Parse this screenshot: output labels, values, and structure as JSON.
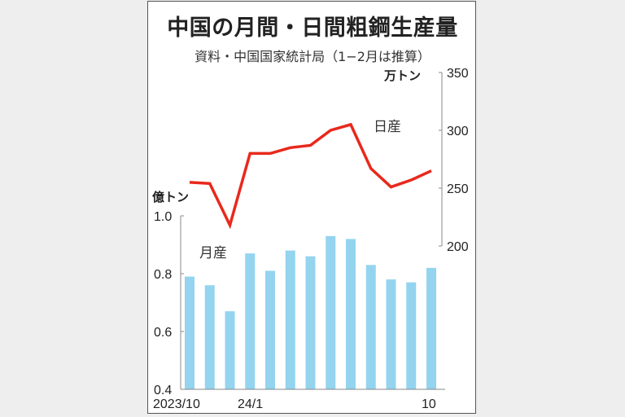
{
  "title": "中国の月間・日間粗鋼生産量",
  "subtitle": "資料・中国国家統計局（1−2月は推算）",
  "units": {
    "right": "万トン",
    "left": "億トン"
  },
  "series_labels": {
    "daily": "日産",
    "monthly": "月産"
  },
  "colors": {
    "bar": "#94d4ef",
    "line": "#e8291c",
    "frame": "#555555",
    "background": "#eeeeee"
  },
  "x_labels": {
    "start": "2023/10",
    "jan": "24/1",
    "end": "10"
  },
  "left_ticks": [
    "1.0",
    "0.8",
    "0.6",
    "0.4"
  ],
  "right_ticks": [
    "350",
    "300",
    "250",
    "200"
  ],
  "chart_data": {
    "type": "bar+line",
    "title": "中国の月間・日間粗鋼生産量",
    "subtitle": "資料・中国国家統計局（1−2月は推算）",
    "categories": [
      "2023/10",
      "2023/11",
      "2023/12",
      "2024/1",
      "2024/2",
      "2024/3",
      "2024/4",
      "2024/5",
      "2024/6",
      "2024/7",
      "2024/8",
      "2024/9",
      "2024/10"
    ],
    "tick_labels": [
      "2023/10",
      "24/1",
      "10"
    ],
    "series": [
      {
        "name": "月産",
        "type": "bar",
        "axis": "left",
        "unit": "億トン",
        "values": [
          0.79,
          0.76,
          0.67,
          0.87,
          0.81,
          0.88,
          0.86,
          0.93,
          0.92,
          0.83,
          0.78,
          0.77,
          0.82
        ]
      },
      {
        "name": "日産",
        "type": "line",
        "axis": "right",
        "unit": "万トン",
        "values": [
          255,
          254,
          218,
          280,
          280,
          285,
          287,
          300,
          305,
          267,
          251,
          257,
          265
        ]
      }
    ],
    "ylim_left": [
      0.4,
      1.0
    ],
    "ylim_right": [
      200,
      350
    ],
    "ylabel_left": "億トン",
    "ylabel_right": "万トン",
    "grid": false
  }
}
